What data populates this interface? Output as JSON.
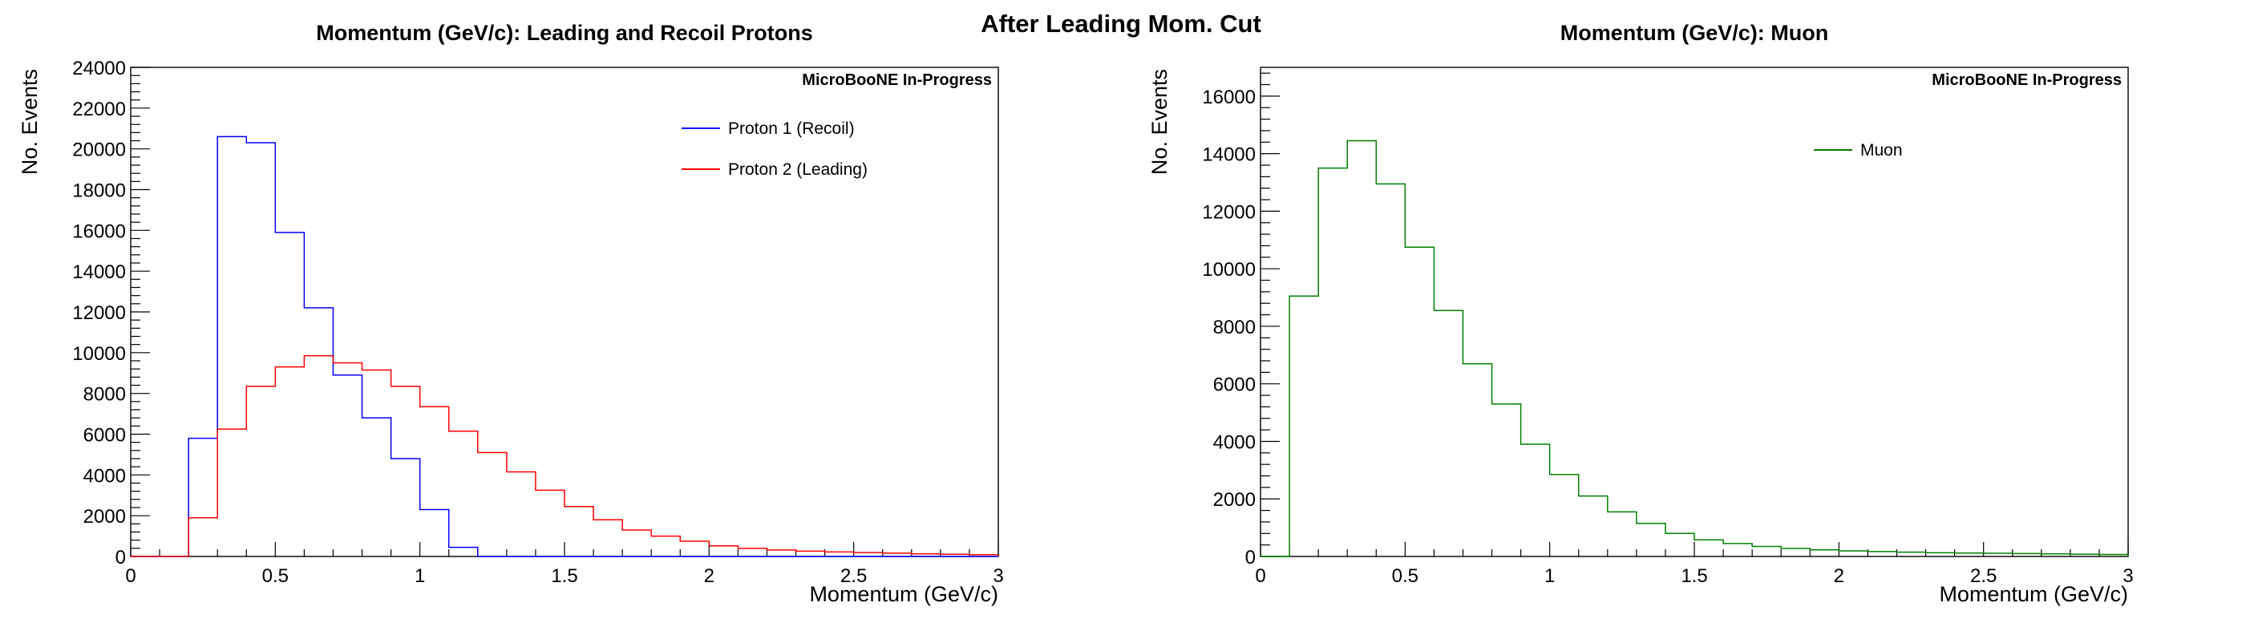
{
  "canvas_title": "After Leading Mom. Cut",
  "chart_data": [
    {
      "type": "histogram",
      "title": "Momentum (GeV/c): Leading and Recoil Protons",
      "xlabel": "Momentum (GeV/c)",
      "ylabel": "No. Events",
      "watermark": "MicroBooNE In-Progress",
      "xlim": [
        0,
        3
      ],
      "ylim": [
        0,
        24000
      ],
      "x_ticks": [
        "0",
        "0.5",
        "1",
        "1.5",
        "2",
        "2.5",
        "3"
      ],
      "y_ticks": [
        "0",
        "2000",
        "4000",
        "6000",
        "8000",
        "10000",
        "12000",
        "14000",
        "16000",
        "18000",
        "20000",
        "22000",
        "24000"
      ],
      "bin_width": 0.1,
      "bin_edges": [
        0,
        0.1,
        0.2,
        0.3,
        0.4,
        0.5,
        0.6,
        0.7,
        0.8,
        0.9,
        1.0,
        1.1,
        1.2,
        1.3,
        1.4,
        1.5,
        1.6,
        1.7,
        1.8,
        1.9,
        2.0,
        2.1,
        2.2,
        2.3,
        2.4,
        2.5,
        2.6,
        2.7,
        2.8,
        2.9,
        3.0
      ],
      "legend_position": "top-right",
      "series": [
        {
          "name": "Proton 1 (Recoil)",
          "color": "#0000ff",
          "values": [
            0,
            0,
            5800,
            20600,
            20300,
            15900,
            12200,
            8900,
            6800,
            4800,
            2300,
            450,
            0,
            0,
            0,
            0,
            0,
            0,
            0,
            0,
            0,
            0,
            0,
            0,
            0,
            0,
            0,
            0,
            0,
            0
          ]
        },
        {
          "name": "Proton 2 (Leading)",
          "color": "#ff0000",
          "values": [
            0,
            0,
            1900,
            6250,
            8350,
            9300,
            9850,
            9500,
            9150,
            8350,
            7350,
            6150,
            5100,
            4150,
            3250,
            2450,
            1800,
            1300,
            1000,
            750,
            520,
            400,
            320,
            260,
            220,
            190,
            160,
            130,
            110,
            90
          ]
        }
      ]
    },
    {
      "type": "histogram",
      "title": "Momentum (GeV/c): Muon",
      "xlabel": "Momentum (GeV/c)",
      "ylabel": "No. Events",
      "watermark": "MicroBooNE In-Progress",
      "xlim": [
        0,
        3
      ],
      "ylim": [
        0,
        17000
      ],
      "x_ticks": [
        "0",
        "0.5",
        "1",
        "1.5",
        "2",
        "2.5",
        "3"
      ],
      "y_ticks": [
        "0",
        "2000",
        "4000",
        "6000",
        "8000",
        "10000",
        "12000",
        "14000",
        "16000"
      ],
      "bin_width": 0.1,
      "bin_edges": [
        0,
        0.1,
        0.2,
        0.3,
        0.4,
        0.5,
        0.6,
        0.7,
        0.8,
        0.9,
        1.0,
        1.1,
        1.2,
        1.3,
        1.4,
        1.5,
        1.6,
        1.7,
        1.8,
        1.9,
        2.0,
        2.1,
        2.2,
        2.3,
        2.4,
        2.5,
        2.6,
        2.7,
        2.8,
        2.9,
        3.0
      ],
      "legend_position": "top-center",
      "series": [
        {
          "name": "Muon",
          "color": "#008000",
          "values": [
            0,
            9050,
            13500,
            14450,
            12950,
            10750,
            8550,
            6700,
            5300,
            3900,
            2850,
            2100,
            1550,
            1150,
            800,
            580,
            450,
            350,
            280,
            230,
            190,
            170,
            150,
            130,
            120,
            110,
            100,
            90,
            80,
            70
          ]
        }
      ]
    }
  ]
}
